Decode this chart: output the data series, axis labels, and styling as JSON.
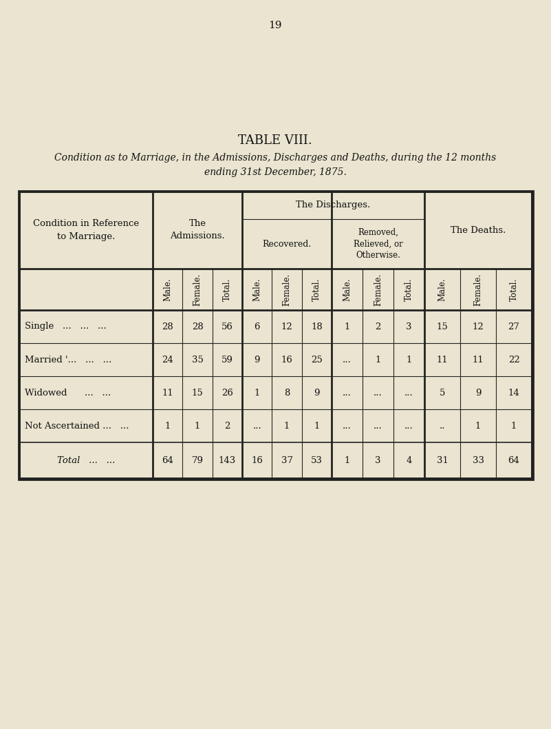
{
  "page_number": "19",
  "title": "TABLE VIII.",
  "subtitle": "Condition as to Marriage, in the Admissions, Discharges and Deaths, during the 12 months\nending 31st December, 1875.",
  "bg_color": "#EAE4D0",
  "table_bg": "#EAE4D0",
  "col_headers": [
    "Male.",
    "Female.",
    "Total.",
    "Male.",
    "Female.",
    "Total.",
    "Male.",
    "Female.",
    "Total.",
    "Male.",
    "Female.",
    "Total."
  ],
  "rows": [
    {
      "label": "Single   ...   ...   ...",
      "values": [
        "28",
        "28",
        "56",
        "6",
        "12",
        "18",
        "1",
        "2",
        "3",
        "15",
        "12",
        "27"
      ]
    },
    {
      "label": "Married '...   ...   ...",
      "values": [
        "24",
        "35",
        "59",
        "9",
        "16",
        "25",
        "...",
        "1",
        "1",
        "11",
        "11",
        "22"
      ]
    },
    {
      "label": "Widowed      ...   ...",
      "values": [
        "11",
        "15",
        "26",
        "1",
        "8",
        "9",
        "...",
        "...",
        "...",
        "5",
        "9",
        "14"
      ]
    },
    {
      "label": "Not Ascertained ...   ...",
      "values": [
        "1",
        "1",
        "2",
        "...",
        "1",
        "1",
        "...",
        "...",
        "...",
        "..",
        "1",
        "1"
      ]
    }
  ],
  "total_row": {
    "label": "Total   ...   ...",
    "values": [
      "64",
      "79",
      "143",
      "16",
      "37",
      "53",
      "1",
      "3",
      "4",
      "31",
      "33",
      "64"
    ]
  },
  "font_color": "#111111",
  "line_color": "#222222"
}
